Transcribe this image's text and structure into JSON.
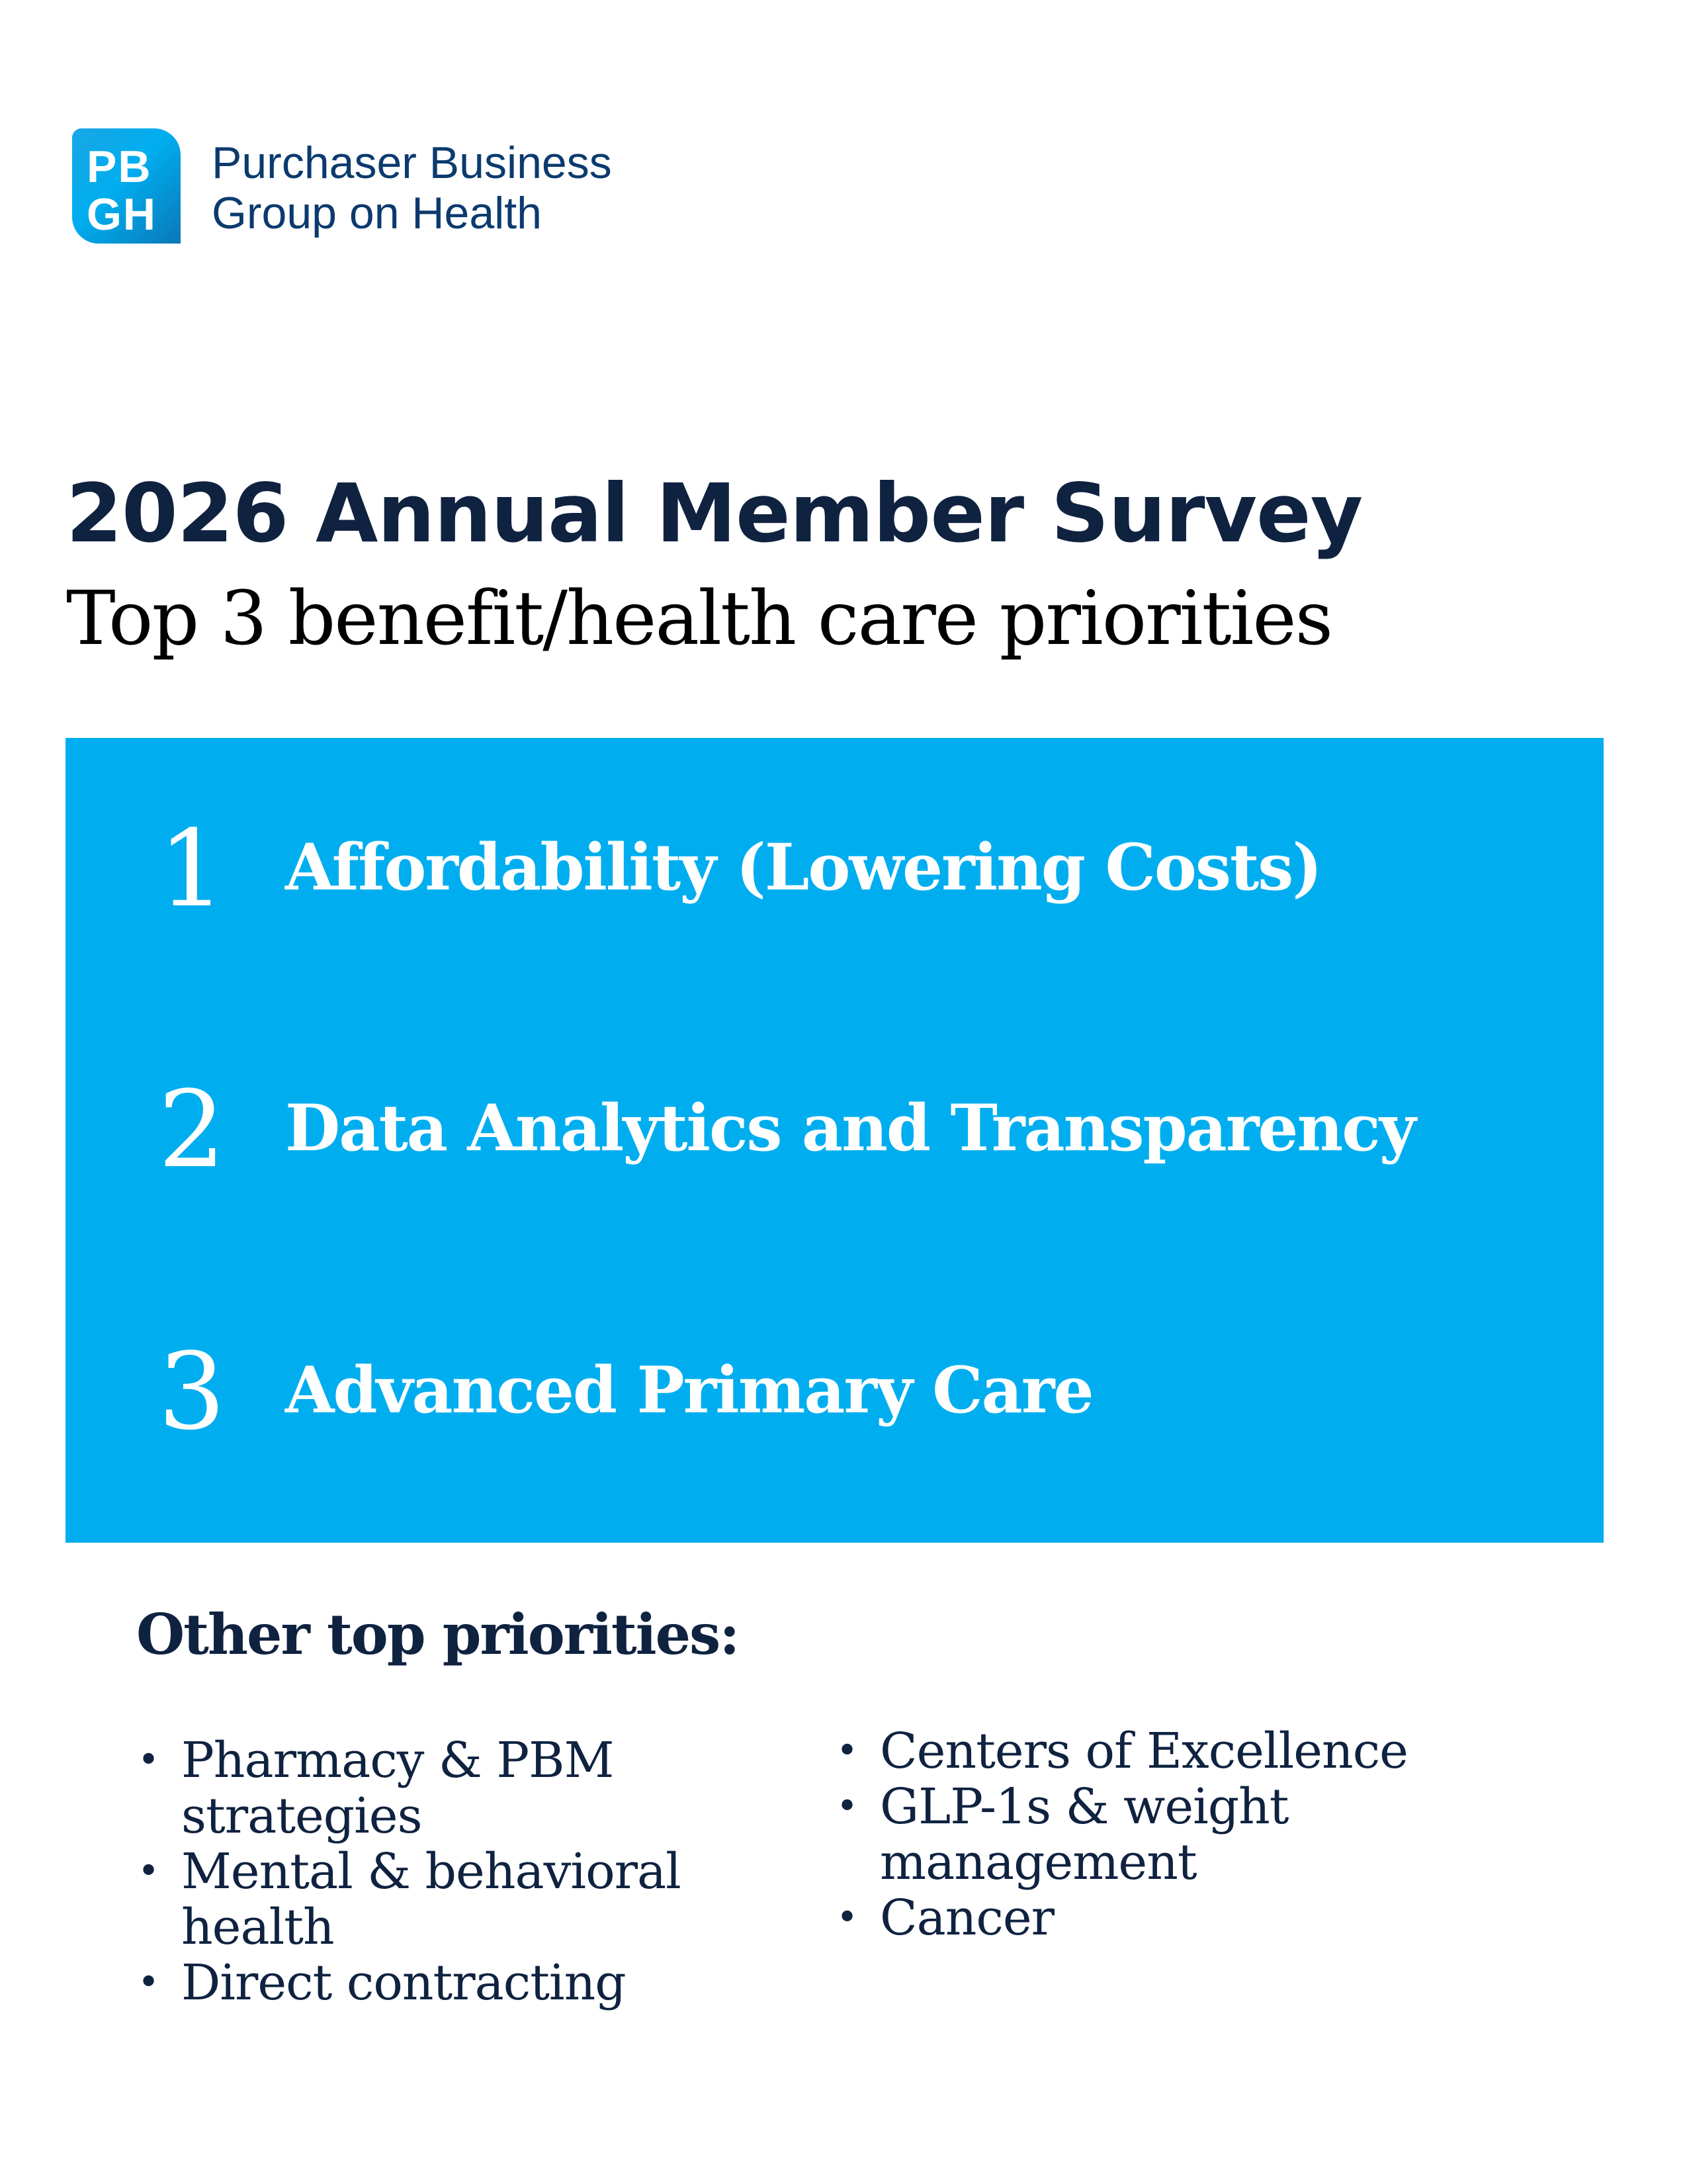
{
  "logo": {
    "mark_lines": [
      "PB",
      "GH"
    ],
    "name_lines": [
      "Purchaser Business",
      "Group on Health"
    ],
    "brand_color": "#00aeef"
  },
  "title": "2026 Annual Member Survey",
  "subtitle": "Top 3 benefit/health care priorities",
  "top_priorities": [
    {
      "rank": "1",
      "label": "Affordability (Lowering Costs)"
    },
    {
      "rank": "2",
      "label": "Data Analytics and Transparency"
    },
    {
      "rank": "3",
      "label": "Advanced Primary Care"
    }
  ],
  "other_title": "Other top priorities:",
  "other_left": [
    "Pharmacy & PBM strategies",
    "Mental & behavioral health",
    "Direct contracting"
  ],
  "other_right": [
    "Centers of Excellence",
    "GLP-1s & weight management",
    "Cancer"
  ],
  "colors": {
    "panel": "#00aeef",
    "text": "#0f2240"
  }
}
